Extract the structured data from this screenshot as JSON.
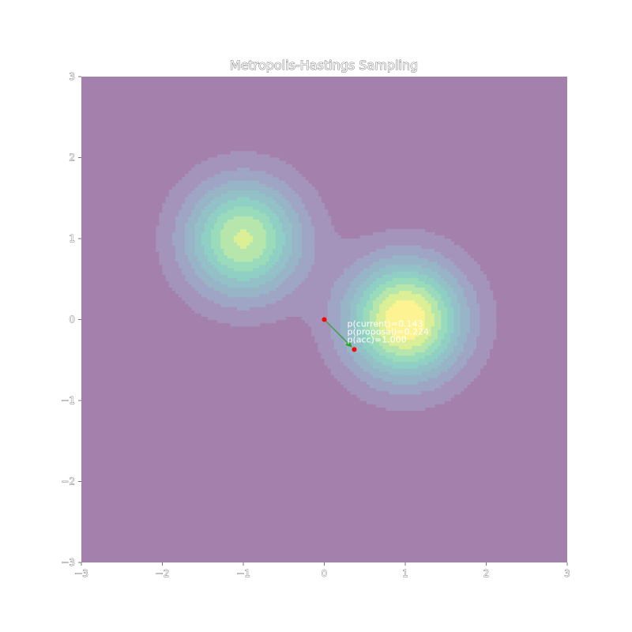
{
  "chart_data": {
    "type": "heatmap",
    "title": "Metropolis-Hastings Sampling",
    "xlabel": "",
    "ylabel": "",
    "xlim": [
      -3,
      3
    ],
    "ylim": [
      -3,
      3
    ],
    "x_ticks": [
      -3,
      -2,
      -1,
      0,
      1,
      2,
      3
    ],
    "y_ticks": [
      -3,
      -2,
      -1,
      0,
      1,
      2,
      3
    ],
    "x_tick_labels": [
      "−3",
      "−2",
      "−1",
      "0",
      "1",
      "2",
      "3"
    ],
    "y_tick_labels": [
      "−3",
      "−2",
      "−1",
      "0",
      "1",
      "2",
      "3"
    ],
    "grid": false,
    "colormap": "viridis",
    "density_components": [
      {
        "center": [
          1,
          0
        ],
        "sigma": 0.5,
        "weight": 1.0
      },
      {
        "center": [
          -1,
          1
        ],
        "sigma": 0.5,
        "weight": 0.8
      }
    ],
    "contour_levels": [
      0.08,
      0.18,
      0.28,
      0.38,
      0.48,
      0.58,
      0.68,
      0.78,
      0.88
    ],
    "current_point": {
      "x": 0.0,
      "y": 0.0
    },
    "proposal_point": {
      "x": 0.37,
      "y": -0.37
    },
    "annotations": [
      "p(current)=0.143",
      "p(proposal)=0.224",
      "p(acc)=1.000"
    ],
    "colors": {
      "background_level": "#a381ac",
      "points": "#ff0000",
      "arrow": "#2ca02c",
      "annotation_text": "#ffffff"
    }
  }
}
